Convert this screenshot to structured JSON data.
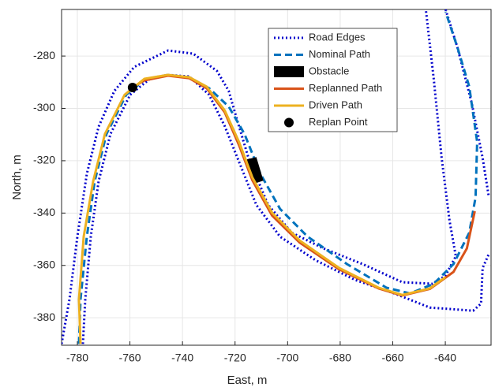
{
  "chart_data": {
    "type": "line",
    "xlabel": "East, m",
    "ylabel": "North, m",
    "xlim": [
      -786,
      -622.6
    ],
    "ylim": [
      -390.5,
      -262.2
    ],
    "xticks": [
      -780,
      -760,
      -740,
      -720,
      -700,
      -680,
      -660,
      -640
    ],
    "yticks": [
      -380,
      -360,
      -340,
      -320,
      -300,
      -280
    ],
    "grid": true,
    "legend": "top-right",
    "series": [
      {
        "name": "Road Edges",
        "color": "#0000cc",
        "style": "dotted",
        "x": [
          -786,
          -783,
          -780,
          -776.4,
          -771.9,
          -765.9,
          -758.4,
          -745.5,
          -735.9,
          -726.9,
          -722.4,
          -719.4,
          -714.9,
          -707.4,
          -698.4,
          -686.4,
          -671.4,
          -656.4,
          -645,
          -640,
          -636,
          -638.4,
          -641.4,
          -644.4,
          -647.4,
          null,
          -777.9,
          -777,
          -774.9,
          -771.9,
          -767.4,
          -759.9,
          -752.4,
          -745.5,
          -737.4,
          -729.9,
          -723.9,
          -717.9,
          -711.9,
          -702.9,
          -689.4,
          -674.4,
          -659.4,
          -645.9,
          -629.4,
          -626.4,
          -625.8,
          -623.4,
          null,
          -639.9,
          -635.4,
          -630,
          -625.8,
          -623.4
        ],
        "values": [
          -390,
          -373,
          -349,
          -325,
          -307,
          -293.3,
          -284.2,
          -277.9,
          -279.1,
          -285.7,
          -293.3,
          -303.8,
          -318.9,
          -336.9,
          -347.5,
          -353.5,
          -359.5,
          -366.4,
          -367,
          -364,
          -356.5,
          -342.9,
          -318.9,
          -288.7,
          -262.3,
          null,
          -390,
          -373,
          -349,
          -327.9,
          -309.8,
          -294.8,
          -288.7,
          -287.2,
          -287.8,
          -294.8,
          -306.8,
          -321.9,
          -336.9,
          -349,
          -358,
          -365.5,
          -370.7,
          -376.1,
          -377.3,
          -374.6,
          -361,
          -355.6,
          null,
          -262.2,
          -276.7,
          -297.8,
          -318.9,
          -334
        ]
      },
      {
        "name": "Nominal Path",
        "color": "#0072bd",
        "style": "dashed",
        "x": [
          -779.4,
          -778.8,
          -776.4,
          -773.4,
          -768.9,
          -761.4,
          -753.9,
          -745.5,
          -737.4,
          -729.9,
          -722.4,
          -716.4,
          -710.4,
          -702.9,
          -692.4,
          -677.4,
          -662.4,
          -653.4,
          -644.4,
          -636.9,
          -630.9,
          -628.5,
          -627.9,
          -630.9,
          -635.4,
          -639.9
        ],
        "values": [
          -390,
          -373,
          -349,
          -327.9,
          -309.8,
          -294.8,
          -288.7,
          -287.2,
          -288.1,
          -292.3,
          -299.3,
          -309.8,
          -324.9,
          -338.4,
          -349,
          -359.5,
          -368.5,
          -370.7,
          -367,
          -359.5,
          -347.5,
          -333.9,
          -312.8,
          -291.7,
          -276.7,
          -263.1
        ]
      },
      {
        "name": "Obstacle",
        "color": "#000000",
        "style": "fill",
        "x": [
          -715.5,
          -711.9,
          -709.2,
          -712.8
        ],
        "values": [
          -319.5,
          -318.6,
          -327.6,
          -328.8
        ]
      },
      {
        "name": "Replanned Path",
        "color": "#d95319",
        "style": "solid",
        "x": [
          -759,
          -754.5,
          -745.5,
          -737.4,
          -730.8,
          -723.9,
          -718.5,
          -713.4,
          -705.9,
          -695.4,
          -680.4,
          -665.4,
          -656.4,
          -645.9,
          -636.9,
          -631.8,
          -628.8
        ],
        "values": [
          -292,
          -289.3,
          -287.5,
          -288.5,
          -292.3,
          -301.5,
          -314,
          -327.5,
          -341,
          -351.3,
          -361.5,
          -368.8,
          -371.5,
          -369,
          -362.5,
          -353.5,
          -339.3
        ]
      },
      {
        "name": "Driven Path",
        "color": "#edb120",
        "style": "solid",
        "x": [
          -778.8,
          -779.4,
          -777.6,
          -774,
          -769.5,
          -762,
          -754.5,
          -745.5,
          -737.4,
          -730.8,
          -723.9,
          -718.5,
          -713.4,
          -705.9,
          -695.4,
          -680.4,
          -665.4,
          -656.4,
          -645.9,
          -640
        ],
        "values": [
          -390,
          -373,
          -349,
          -327.9,
          -309.8,
          -294.8,
          -288.7,
          -287.2,
          -288.1,
          -291.7,
          -300.8,
          -312.8,
          -326.4,
          -339.9,
          -350.5,
          -361,
          -368.5,
          -371.3,
          -368.8,
          -364.5
        ]
      },
      {
        "name": "Replan Point",
        "color": "#000000",
        "style": "marker",
        "x": [
          -759
        ],
        "values": [
          -292
        ]
      }
    ]
  }
}
